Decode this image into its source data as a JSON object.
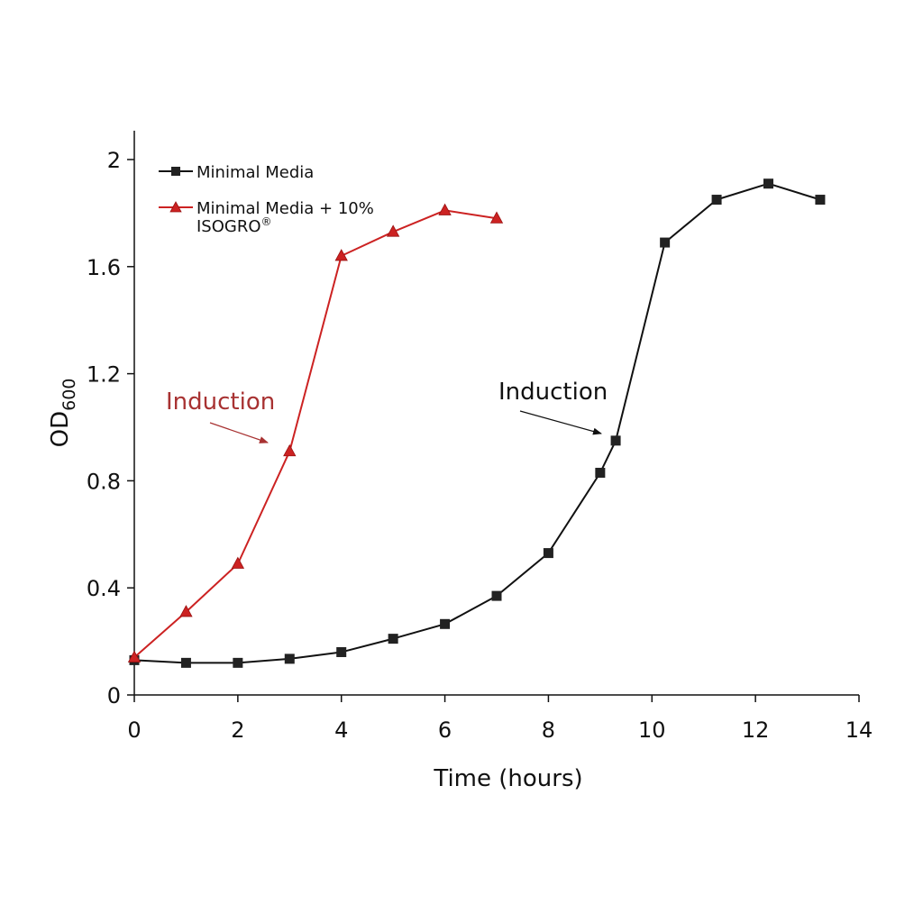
{
  "chart_data": {
    "type": "line",
    "title": "",
    "xlabel": "Time (hours)",
    "ylabel_main": "OD",
    "ylabel_sub": "600",
    "xlim": [
      0,
      14
    ],
    "ylim": [
      0,
      2
    ],
    "xticks": [
      "0",
      "2",
      "4",
      "6",
      "8",
      "10",
      "12",
      "14"
    ],
    "yticks": [
      "0",
      "0.4",
      "0.8",
      "1.2",
      "1.6",
      "2"
    ],
    "grid": false,
    "legend_position": "top-left",
    "series": [
      {
        "name": "Minimal Media",
        "color": "#111111",
        "marker": "square",
        "x": [
          0,
          1,
          2,
          3,
          4,
          5,
          6,
          7,
          8,
          9,
          9.3,
          10.25,
          11.25,
          12.25,
          13.25
        ],
        "y": [
          0.13,
          0.12,
          0.12,
          0.135,
          0.16,
          0.21,
          0.265,
          0.37,
          0.53,
          0.83,
          0.95,
          1.69,
          1.85,
          1.91,
          1.85
        ]
      },
      {
        "name": "Minimal Media + 10%",
        "name_line2": "ISOGRO",
        "name_mark": "®",
        "color": "#cc2222",
        "marker": "triangle",
        "x": [
          0,
          1,
          2,
          3,
          4,
          5,
          6,
          7
        ],
        "y": [
          0.14,
          0.31,
          0.49,
          0.91,
          1.64,
          1.73,
          1.81,
          1.78
        ]
      }
    ],
    "annotations": [
      {
        "text": "Induction",
        "color": "#a83232",
        "series": 1,
        "x": 3,
        "y": 0.91
      },
      {
        "text": "Induction",
        "color": "#111111",
        "series": 0,
        "x": 9.3,
        "y": 0.95
      }
    ]
  }
}
